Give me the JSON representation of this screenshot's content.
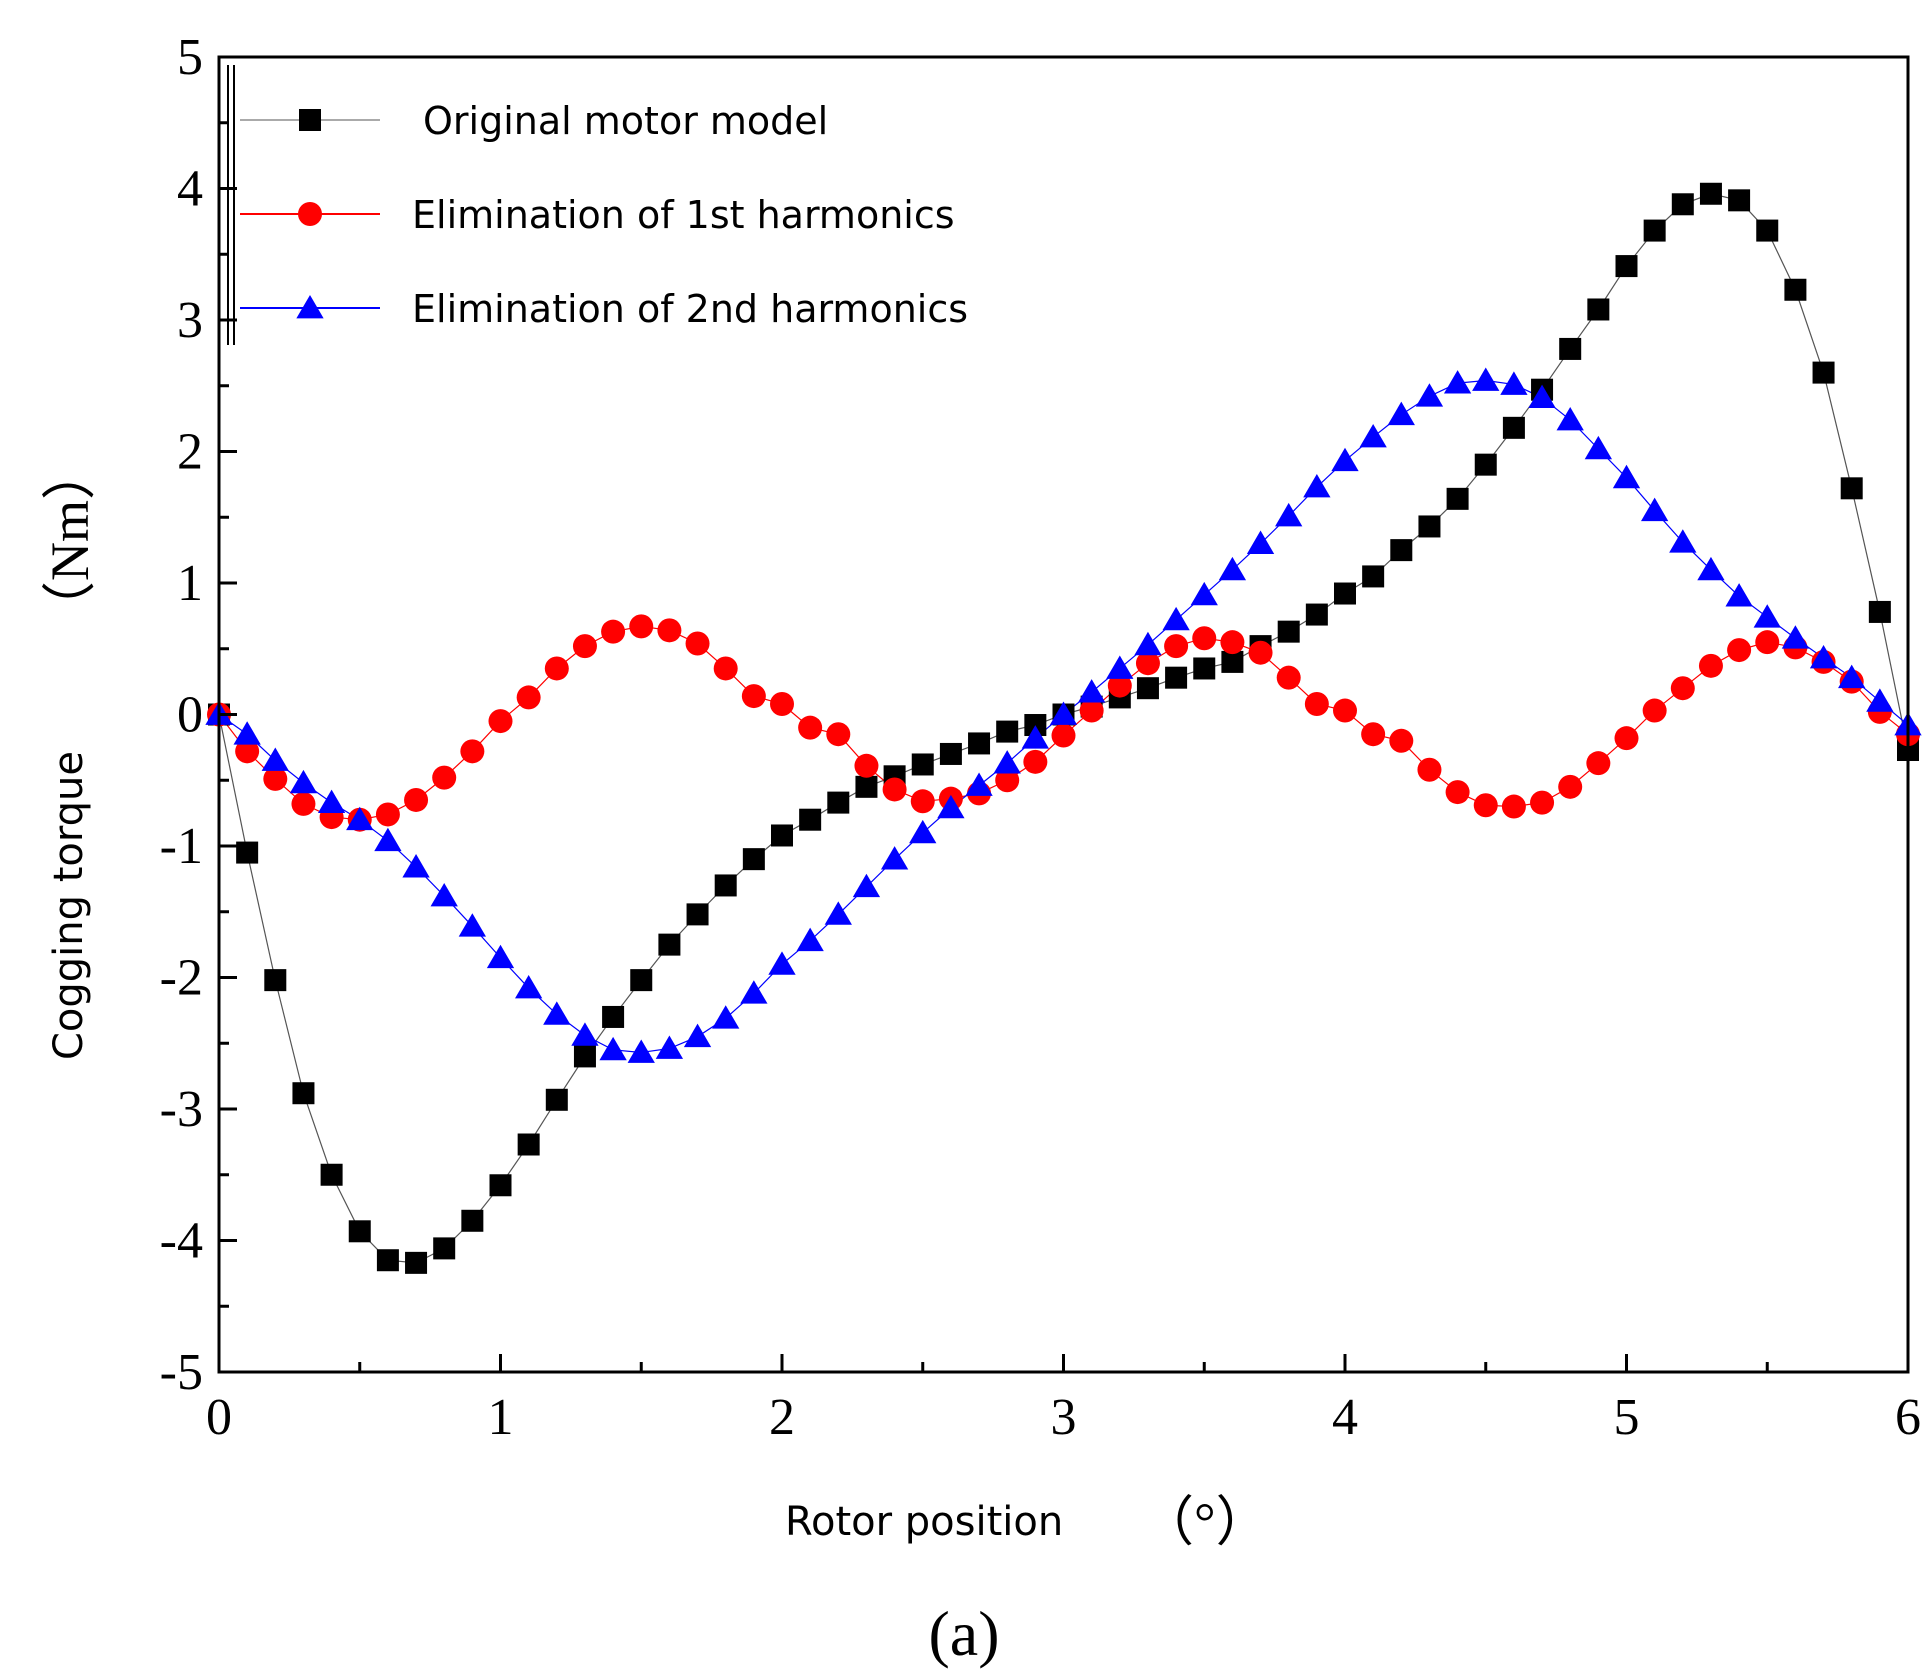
{
  "chart_data": {
    "type": "line",
    "xlabel": "Rotor position",
    "xunit": "（°）",
    "ylabel": "Cogging torque",
    "yunit": "（Nm）",
    "panel_label": "(a)",
    "xlim": [
      0,
      6
    ],
    "ylim": [
      -5,
      5
    ],
    "x_ticks": [
      0,
      1,
      2,
      3,
      4,
      5,
      6
    ],
    "y_ticks": [
      5,
      4,
      3,
      2,
      1,
      0,
      -1,
      -2,
      -3,
      -4,
      -5
    ],
    "x_tick_labels": [
      "0",
      "1",
      "2",
      "3",
      "4",
      "5",
      "6"
    ],
    "y_tick_labels": [
      "5",
      "4",
      "3",
      "2",
      "1",
      "0",
      "-1",
      "-2",
      "-3",
      "-4",
      "-5"
    ],
    "legend_position": "top-left",
    "x": [
      0,
      0.1,
      0.2,
      0.3,
      0.4,
      0.5,
      0.6,
      0.7,
      0.8,
      0.9,
      1.0,
      1.1,
      1.2,
      1.3,
      1.4,
      1.5,
      1.6,
      1.7,
      1.8,
      1.9,
      2.0,
      2.1,
      2.2,
      2.3,
      2.4,
      2.5,
      2.6,
      2.7,
      2.8,
      2.9,
      3.0,
      3.1,
      3.2,
      3.3,
      3.4,
      3.5,
      3.6,
      3.7,
      3.8,
      3.9,
      4.0,
      4.1,
      4.2,
      4.3,
      4.4,
      4.5,
      4.6,
      4.7,
      4.8,
      4.9,
      5.0,
      5.1,
      5.2,
      5.3,
      5.4,
      5.5,
      5.6,
      5.7,
      5.8,
      5.9,
      6.0
    ],
    "series": [
      {
        "name": "Original motor model",
        "color": "#000000",
        "marker": "square",
        "values": [
          0,
          -1.05,
          -2.02,
          -2.88,
          -3.5,
          -3.93,
          -4.15,
          -4.17,
          -4.06,
          -3.85,
          -3.58,
          -3.27,
          -2.93,
          -2.6,
          -2.3,
          -2.02,
          -1.75,
          -1.52,
          -1.3,
          -1.1,
          -0.92,
          -0.8,
          -0.67,
          -0.55,
          -0.47,
          -0.38,
          -0.3,
          -0.22,
          -0.13,
          -0.08,
          0.0,
          0.06,
          0.13,
          0.2,
          0.28,
          0.35,
          0.4,
          0.52,
          0.63,
          0.76,
          0.92,
          1.05,
          1.25,
          1.43,
          1.64,
          1.9,
          2.18,
          2.47,
          2.78,
          3.08,
          3.41,
          3.68,
          3.88,
          3.96,
          3.91,
          3.68,
          3.23,
          2.6,
          1.72,
          0.78,
          -0.27
        ]
      },
      {
        "name": "Elimination of 1st harmonics",
        "color": "#ff0000",
        "marker": "circle",
        "values": [
          0,
          -0.28,
          -0.49,
          -0.68,
          -0.78,
          -0.8,
          -0.76,
          -0.65,
          -0.48,
          -0.28,
          -0.05,
          0.13,
          0.35,
          0.52,
          0.63,
          0.67,
          0.64,
          0.54,
          0.35,
          0.14,
          0.08,
          -0.1,
          -0.15,
          -0.39,
          -0.57,
          -0.66,
          -0.64,
          -0.6,
          -0.5,
          -0.36,
          -0.16,
          0.03,
          0.22,
          0.39,
          0.52,
          0.58,
          0.55,
          0.47,
          0.28,
          0.08,
          0.03,
          -0.15,
          -0.2,
          -0.42,
          -0.59,
          -0.69,
          -0.7,
          -0.67,
          -0.55,
          -0.37,
          -0.18,
          0.03,
          0.2,
          0.37,
          0.49,
          0.55,
          0.51,
          0.4,
          0.25,
          0.02,
          -0.15
        ]
      },
      {
        "name": "Elimination of 2nd harmonics",
        "color": "#0000ff",
        "marker": "triangle",
        "values": [
          0,
          -0.15,
          -0.35,
          -0.52,
          -0.67,
          -0.8,
          -0.96,
          -1.16,
          -1.38,
          -1.61,
          -1.85,
          -2.08,
          -2.28,
          -2.44,
          -2.55,
          -2.57,
          -2.54,
          -2.45,
          -2.31,
          -2.12,
          -1.9,
          -1.72,
          -1.52,
          -1.31,
          -1.1,
          -0.9,
          -0.71,
          -0.54,
          -0.37,
          -0.18,
          0.0,
          0.17,
          0.35,
          0.53,
          0.72,
          0.91,
          1.1,
          1.3,
          1.51,
          1.73,
          1.93,
          2.11,
          2.28,
          2.42,
          2.52,
          2.54,
          2.51,
          2.41,
          2.24,
          2.02,
          1.8,
          1.55,
          1.31,
          1.1,
          0.9,
          0.74,
          0.58,
          0.43,
          0.28,
          0.1,
          -0.08
        ]
      }
    ]
  }
}
